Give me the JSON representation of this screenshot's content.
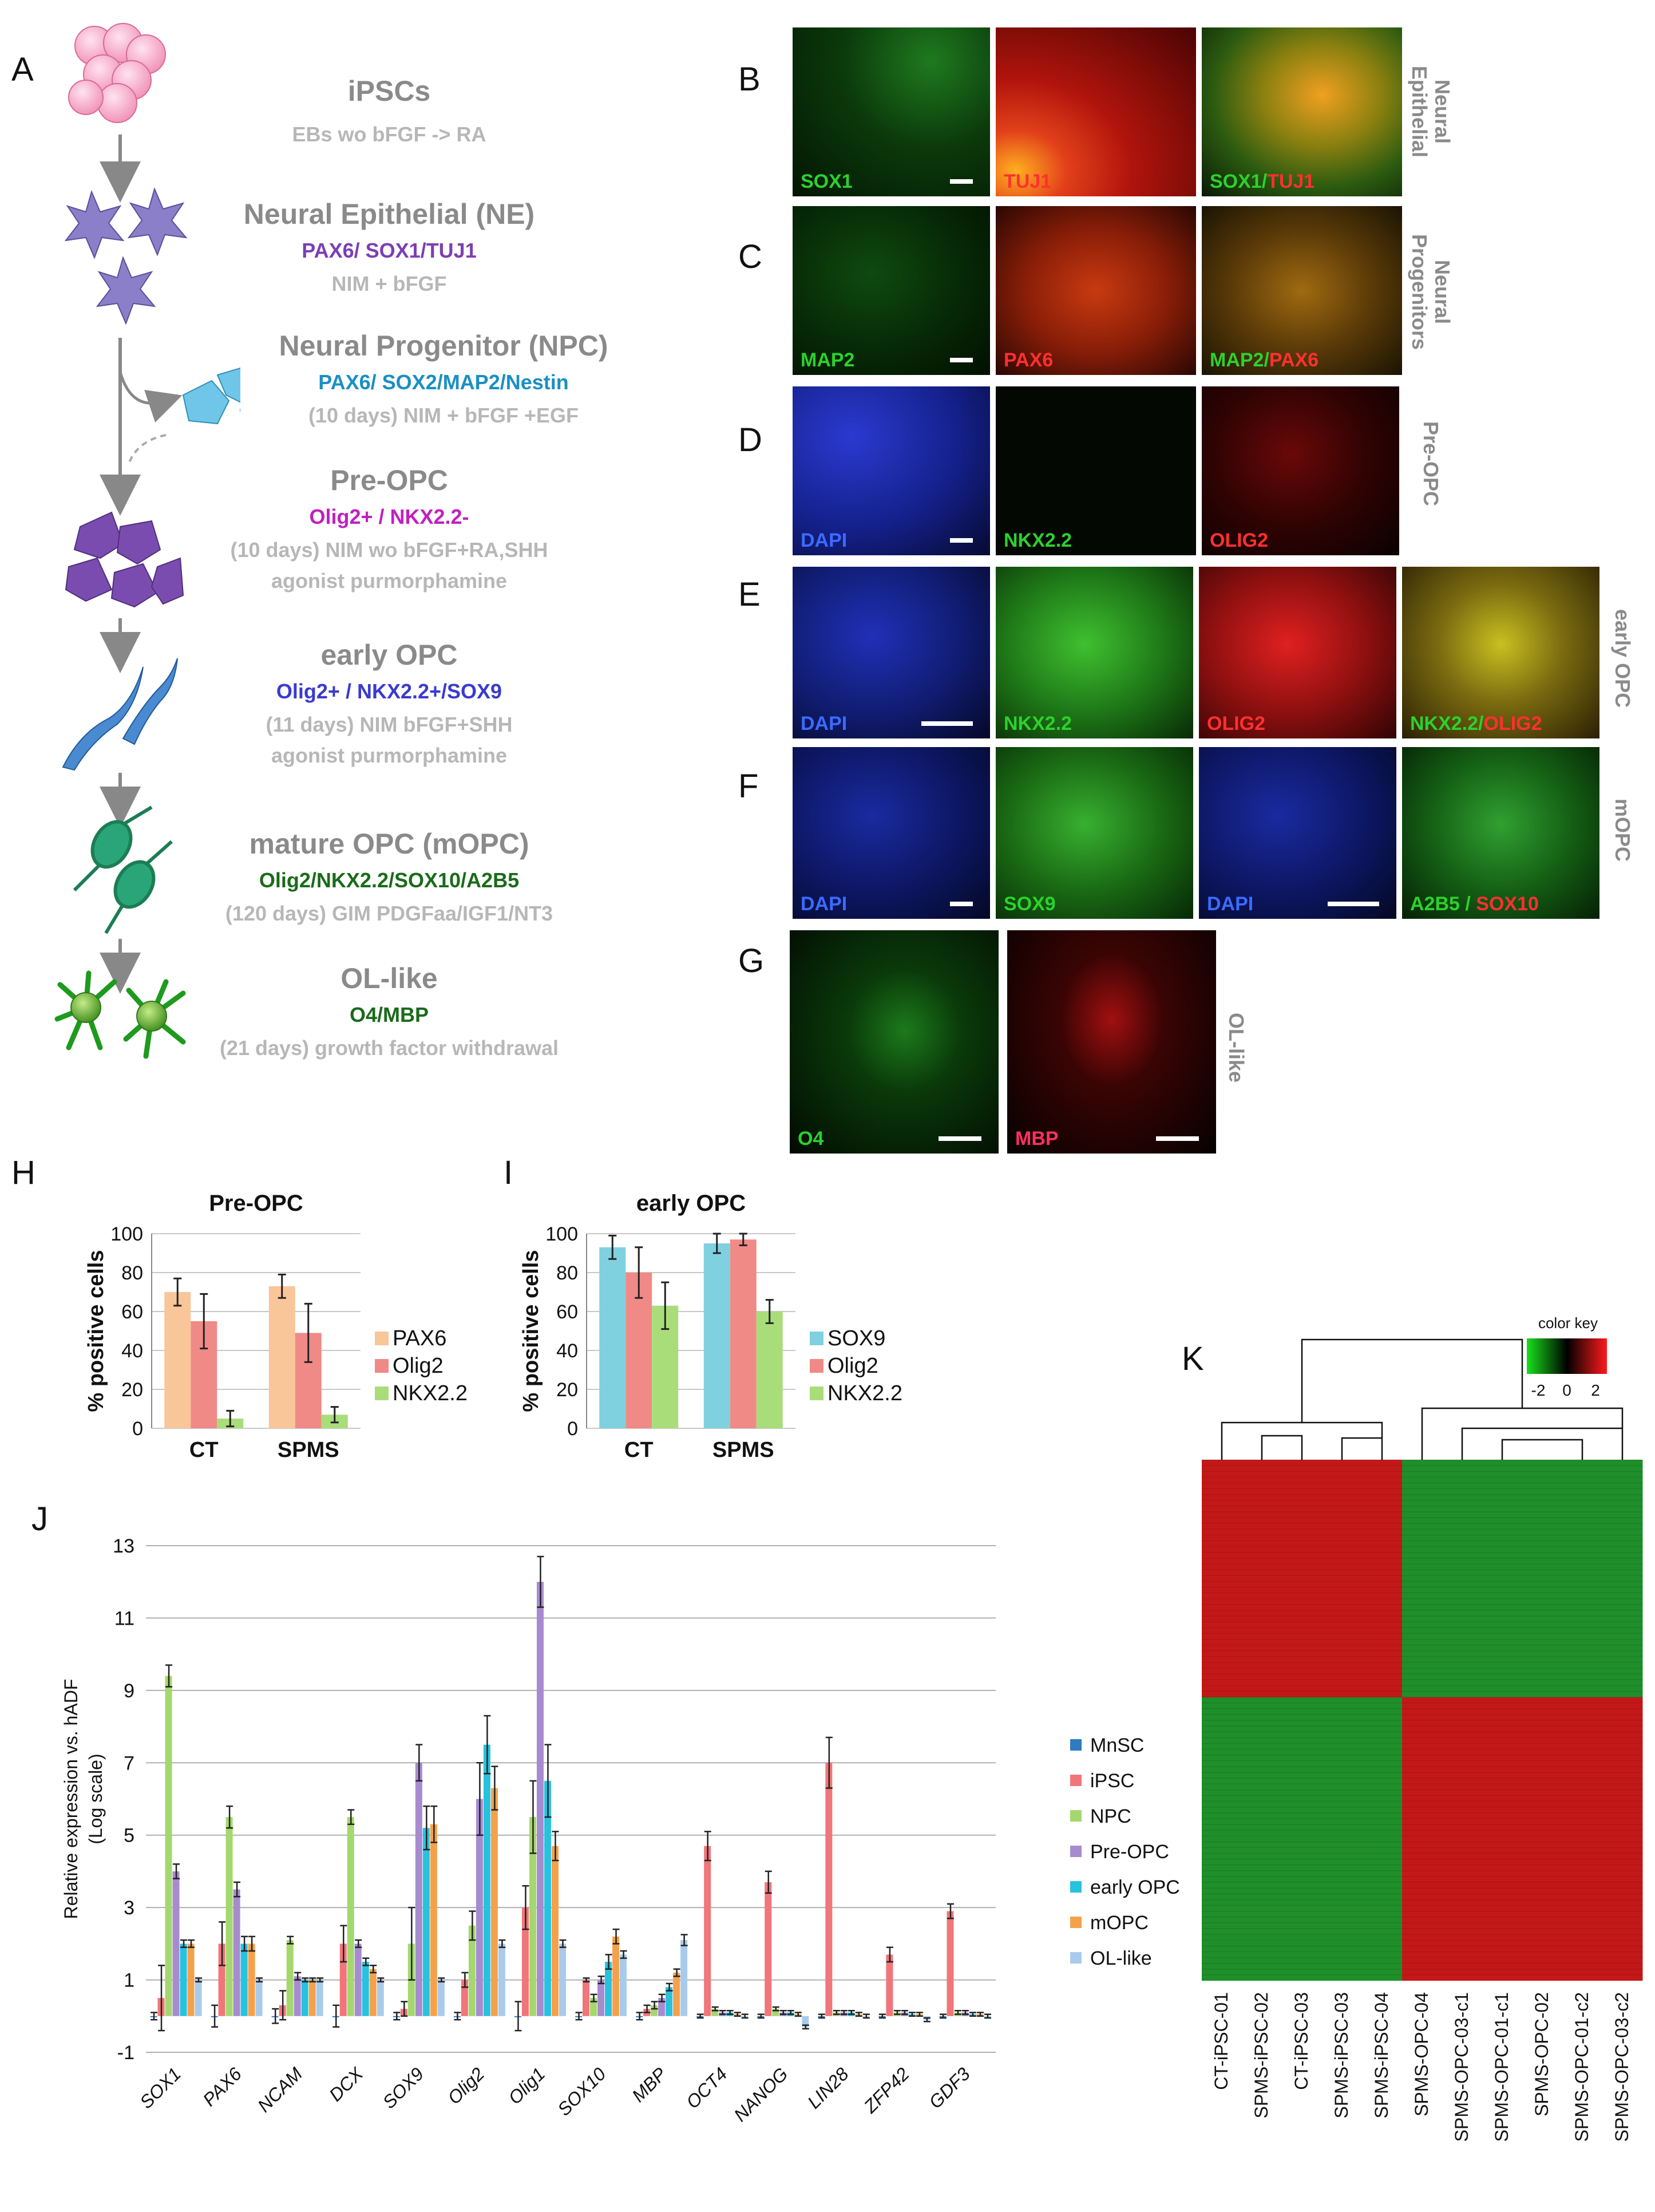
{
  "panels": {
    "A": "A",
    "B": "B",
    "C": "C",
    "D": "D",
    "E": "E",
    "F": "F",
    "G": "G",
    "H": "H",
    "I": "I",
    "J": "J",
    "K": "K"
  },
  "colors": {
    "ne_marker": "#7b3fb5",
    "npc_marker": "#1a8fc4",
    "preopc_marker": "#c020c0",
    "early_marker": "#3a3ad0",
    "mopc_marker": "#1a6b1a",
    "ol_marker": "#1a6b1a",
    "gray_title": "#8a8a8a",
    "gray_sub": "#b7b7b7"
  },
  "flow": {
    "ipsc": {
      "title": "iPSCs",
      "sub": "EBs wo bFGF -> RA"
    },
    "ne": {
      "title": "Neural Epithelial (NE)",
      "markers": "PAX6/ SOX1/TUJ1",
      "sub": "NIM + bFGF"
    },
    "npc": {
      "title": "Neural Progenitor (NPC)",
      "markers": "PAX6/ SOX2/MAP2/Nestin",
      "sub": "(10 days) NIM + bFGF +EGF"
    },
    "preopc": {
      "title": "Pre-OPC",
      "markers": "Olig2+ / NKX2.2-",
      "sub1": "(10 days) NIM wo bFGF+RA,SHH",
      "sub2": "agonist purmorphamine"
    },
    "early": {
      "title": "early OPC",
      "markers": "Olig2+ / NKX2.2+/SOX9",
      "sub1": "(11 days) NIM  bFGF+SHH",
      "sub2": "agonist purmorphamine"
    },
    "mopc": {
      "title": "mature OPC (mOPC)",
      "markers": "Olig2/NKX2.2/SOX10/A2B5",
      "sub": "(120 days) GIM PDGFaa/IGF1/NT3"
    },
    "ol": {
      "title": "OL-like",
      "markers": "O4/MBP",
      "sub": "(21 days) growth factor withdrawal"
    }
  },
  "micro": {
    "b": {
      "side": [
        "Neural",
        "Epithelial"
      ],
      "l1": "SOX1",
      "l2": "TUJ1",
      "l3a": "SOX1/",
      "l3b": "TUJ1"
    },
    "c": {
      "side": [
        "Neural",
        "Progenitors"
      ],
      "l1": "MAP2",
      "l2": "PAX6",
      "l3a": "MAP2/",
      "l3b": "PAX6"
    },
    "d": {
      "side": [
        "Pre-OPC"
      ],
      "l1": "DAPI",
      "l2": "NKX2.2",
      "l3": "OLIG2"
    },
    "e": {
      "side": [
        "early OPC"
      ],
      "l1": "DAPI",
      "l2": "NKX2.2",
      "l3": "OLIG2",
      "l4a": "NKX2.2/",
      "l4b": "OLIG2"
    },
    "f": {
      "side": [
        "mOPC"
      ],
      "l1": "DAPI",
      "l2": "SOX9",
      "l3": "DAPI",
      "l4a": "A2B5 / ",
      "l4b": "SOX10"
    },
    "g": {
      "side": [
        "OL-like"
      ],
      "l1": "O4",
      "l2": "MBP"
    }
  },
  "chart_data": [
    {
      "id": "H",
      "type": "bar",
      "title": "Pre-OPC",
      "ylabel": "% positive cells",
      "xlabel": "",
      "ylim": [
        0,
        100
      ],
      "yticks": [
        0,
        20,
        40,
        60,
        80,
        100
      ],
      "grid": true,
      "legend": "right",
      "categories": [
        "CT",
        "SPMS"
      ],
      "series": [
        {
          "name": "PAX6",
          "values": [
            70,
            73
          ],
          "err": [
            7,
            6
          ],
          "color": "#f9c69a"
        },
        {
          "name": "Olig2",
          "values": [
            55,
            49
          ],
          "err": [
            14,
            15
          ],
          "color": "#f08a86"
        },
        {
          "name": "NKX2.2",
          "values": [
            5,
            7
          ],
          "err": [
            4,
            4
          ],
          "color": "#a9dd7a"
        }
      ]
    },
    {
      "id": "I",
      "type": "bar",
      "title": "early OPC",
      "ylabel": "% positive cells",
      "xlabel": "",
      "ylim": [
        0,
        100
      ],
      "yticks": [
        0,
        20,
        40,
        60,
        80,
        100
      ],
      "grid": true,
      "legend": "right",
      "categories": [
        "CT",
        "SPMS"
      ],
      "series": [
        {
          "name": "SOX9",
          "values": [
            93,
            95
          ],
          "err": [
            6,
            5
          ],
          "color": "#7fd1e0"
        },
        {
          "name": "Olig2",
          "values": [
            80,
            97
          ],
          "err": [
            13,
            3
          ],
          "color": "#f08a86"
        },
        {
          "name": "NKX2.2",
          "values": [
            63,
            60
          ],
          "err": [
            12,
            6
          ],
          "color": "#a9dd7a"
        }
      ]
    },
    {
      "id": "J",
      "type": "bar",
      "title": "",
      "ylabel": "Relative expression vs. hADF (Log scale)",
      "xlabel": "",
      "ylim": [
        -1,
        13
      ],
      "yticks": [
        -1,
        1,
        3,
        5,
        7,
        9,
        11,
        13
      ],
      "grid": true,
      "legend": "right",
      "categories": [
        "SOX1",
        "PAX6",
        "NCAM",
        "DCX",
        "SOX9",
        "Olig2",
        "Olig1",
        "SOX10",
        "MBP",
        "OCT4",
        "NANOG",
        "LIN28",
        "ZFP42",
        "GDF3"
      ],
      "series": [
        {
          "name": "MnSC",
          "values": [
            0,
            0,
            0,
            0,
            0,
            0,
            0,
            0,
            0,
            0,
            0,
            0,
            0,
            0
          ],
          "err": [
            0.1,
            0.3,
            0.2,
            0.3,
            0.1,
            0.1,
            0.4,
            0.1,
            0.1,
            0.05,
            0.05,
            0.05,
            0.05,
            0.05
          ],
          "color": "#2f7bbf"
        },
        {
          "name": "iPSC",
          "values": [
            0.5,
            2,
            0.3,
            2,
            0.2,
            1,
            3,
            1,
            0.2,
            4.7,
            3.7,
            7,
            1.7,
            2.9
          ],
          "err": [
            0.9,
            0.6,
            0.4,
            0.5,
            0.2,
            0.2,
            0.6,
            0.05,
            0.1,
            0.4,
            0.3,
            0.7,
            0.2,
            0.2
          ],
          "color": "#f0767a"
        },
        {
          "name": "NPC",
          "values": [
            9.4,
            5.5,
            2.1,
            5.5,
            2,
            2.5,
            5.5,
            0.5,
            0.3,
            0.2,
            0.2,
            0.1,
            0.1,
            0.1
          ],
          "err": [
            0.3,
            0.3,
            0.1,
            0.2,
            1,
            0.4,
            1,
            0.1,
            0.1,
            0.05,
            0.05,
            0.05,
            0.05,
            0.05
          ],
          "color": "#a4d86e"
        },
        {
          "name": "Pre-OPC",
          "values": [
            4,
            3.5,
            1.1,
            2,
            7,
            6,
            12,
            1,
            0.5,
            0.1,
            0.1,
            0.1,
            0.1,
            0.1
          ],
          "err": [
            0.2,
            0.2,
            0.1,
            0.1,
            0.5,
            1,
            0.7,
            0.1,
            0.1,
            0.05,
            0.05,
            0.05,
            0.05,
            0.05
          ],
          "color": "#a78bcf"
        },
        {
          "name": "early OPC",
          "values": [
            2,
            2,
            1,
            1.5,
            5.2,
            7.5,
            6.5,
            1.5,
            0.8,
            0.1,
            0.1,
            0.1,
            0.05,
            0.05
          ],
          "err": [
            0.1,
            0.2,
            0.05,
            0.1,
            0.6,
            0.8,
            1,
            0.2,
            0.1,
            0.05,
            0.05,
            0.05,
            0.05,
            0.05
          ],
          "color": "#27c2de"
        },
        {
          "name": "mOPC",
          "values": [
            2,
            2,
            1,
            1.3,
            5.3,
            6.3,
            4.7,
            2.2,
            1.2,
            0.05,
            0.05,
            0.05,
            0.05,
            0.05
          ],
          "err": [
            0.1,
            0.2,
            0.05,
            0.1,
            0.5,
            0.6,
            0.4,
            0.2,
            0.1,
            0.05,
            0.05,
            0.05,
            0.05,
            0.05
          ],
          "color": "#f5a14b"
        },
        {
          "name": "OL-like",
          "values": [
            1,
            1,
            1,
            1,
            1,
            2,
            2,
            1.7,
            2.1,
            0,
            -0.3,
            0,
            -0.1,
            0
          ],
          "err": [
            0.05,
            0.05,
            0.05,
            0.05,
            0.05,
            0.1,
            0.1,
            0.1,
            0.15,
            0.05,
            0.05,
            0.05,
            0.05,
            0.05
          ],
          "color": "#a9cbeb"
        }
      ]
    },
    {
      "id": "K",
      "type": "heatmap",
      "title": "",
      "legend_title": "color key",
      "legend_ticks": [
        "-2",
        "0",
        "2"
      ],
      "samples": [
        "CT-iPSC-01",
        "SPMS-iPSC-02",
        "CT-iPSC-03",
        "SPMS-iPSC-03",
        "SPMS-iPSC-04",
        "SPMS-OPC-04",
        "SPMS-OPC-03-c1",
        "SPMS-OPC-01-c1",
        "SPMS-OPC-02",
        "SPMS-OPC-01-c2",
        "SPMS-OPC-03-c2"
      ],
      "clusters": [
        {
          "name": "",
          "rows": "upper",
          "ipsc": "high",
          "opc": "low"
        },
        {
          "name": "",
          "rows": "lower",
          "ipsc": "low",
          "opc": "high"
        }
      ],
      "colors": {
        "low": "#1f8f2a",
        "mid": "#000000",
        "high": "#c41818"
      }
    }
  ]
}
